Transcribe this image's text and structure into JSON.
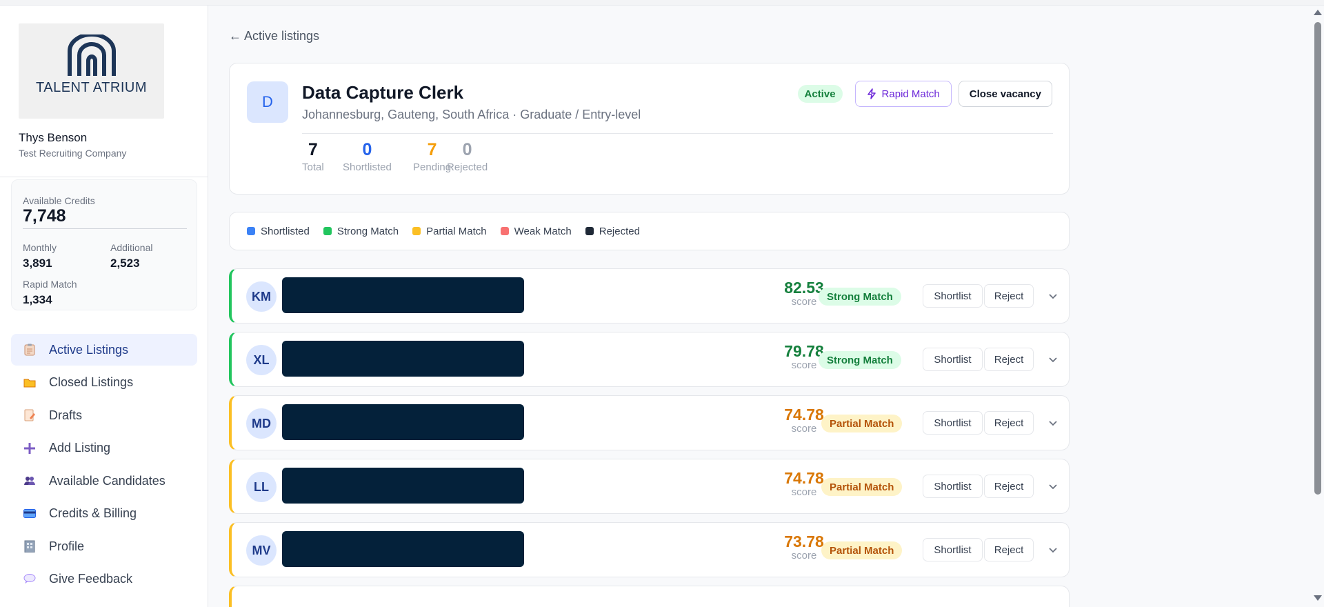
{
  "sidebar": {
    "logo_text": "TALENT ATRIUM",
    "user_name": "Thys Benson",
    "company": "Test Recruiting Company",
    "credits": {
      "available_label": "Available Credits",
      "available_value": "7,748",
      "monthly_label": "Monthly",
      "monthly_value": "3,891",
      "additional_label": "Additional",
      "additional_value": "2,523",
      "rapid_label": "Rapid Match",
      "rapid_value": "1,334"
    },
    "nav": [
      {
        "label": "Active Listings",
        "icon": "clipboard-icon"
      },
      {
        "label": "Closed Listings",
        "icon": "folder-icon"
      },
      {
        "label": "Drafts",
        "icon": "draft-icon"
      },
      {
        "label": "Add Listing",
        "icon": "plus-icon"
      },
      {
        "label": "Available Candidates",
        "icon": "people-icon"
      },
      {
        "label": "Credits & Billing",
        "icon": "card-icon"
      },
      {
        "label": "Profile",
        "icon": "building-icon"
      },
      {
        "label": "Give Feedback",
        "icon": "speech-bubble-icon"
      }
    ]
  },
  "main": {
    "back_link": "← Active listings",
    "job": {
      "avatar": "D",
      "title": "Data Capture Clerk",
      "subtitle": "Johannesburg, Gauteng, South Africa · Graduate / Entry-level",
      "status": "Active",
      "rapid_button": "Rapid Match",
      "close_button": "Close vacancy",
      "stats": [
        {
          "value": "7",
          "label": "Total",
          "color": "#111827"
        },
        {
          "value": "0",
          "label": "Shortlisted",
          "color": "#2563eb"
        },
        {
          "value": "7",
          "label": "Pending",
          "color": "#f59e0b"
        },
        {
          "value": "0",
          "label": "Rejected",
          "color": "#9ca3af"
        }
      ]
    },
    "legend": [
      {
        "label": "Shortlisted",
        "color": "#3b82f6"
      },
      {
        "label": "Strong Match",
        "color": "#22c55e"
      },
      {
        "label": "Partial Match",
        "color": "#fbbf24"
      },
      {
        "label": "Weak Match",
        "color": "#f87171"
      },
      {
        "label": "Rejected",
        "color": "#1f2937"
      }
    ],
    "candidates": [
      {
        "initials": "KM",
        "score": "82.53",
        "score_label": "score",
        "match": "Strong Match",
        "type": "strong",
        "shortlist": "Shortlist",
        "reject": "Reject"
      },
      {
        "initials": "XL",
        "score": "79.78",
        "score_label": "score",
        "match": "Strong Match",
        "type": "strong",
        "shortlist": "Shortlist",
        "reject": "Reject"
      },
      {
        "initials": "MD",
        "score": "74.78",
        "score_label": "score",
        "match": "Partial Match",
        "type": "partial",
        "shortlist": "Shortlist",
        "reject": "Reject"
      },
      {
        "initials": "LL",
        "score": "74.78",
        "score_label": "score",
        "match": "Partial Match",
        "type": "partial",
        "shortlist": "Shortlist",
        "reject": "Reject"
      },
      {
        "initials": "MV",
        "score": "73.78",
        "score_label": "score",
        "match": "Partial Match",
        "type": "partial",
        "shortlist": "Shortlist",
        "reject": "Reject"
      }
    ],
    "colors": {
      "strong_score": "#15803d",
      "partial_score": "#d97706"
    }
  }
}
